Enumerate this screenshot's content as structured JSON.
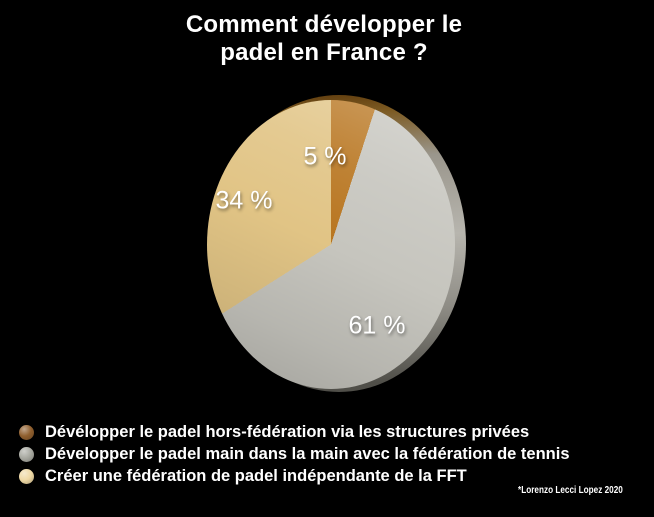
{
  "title": {
    "line1": "Comment développer le",
    "line2": "padel en France ?"
  },
  "chart_data": {
    "type": "pie",
    "style": "3d",
    "title": "Comment développer le padel en France ?",
    "unit": "%",
    "legend_position": "bottom-left",
    "start_angle_deg": 0,
    "direction": "clockwise",
    "slices": [
      {
        "label": "Dévélopper le padel hors-fédération via les structures privées",
        "value": 5,
        "display": "5 %",
        "color": "#b8751f",
        "dot_color": "#8f5f2e"
      },
      {
        "label": "Développer le padel main dans la main avec la fédération de tennis",
        "value": 61,
        "display": "61 %",
        "color": "#c6c5be",
        "dot_color": "#a8a9a1"
      },
      {
        "label": "Créer une fédération de padel indépendante de la FFT",
        "value": 34,
        "display": "34 %",
        "color": "#e1c485",
        "dot_color": "#eed8a4"
      }
    ]
  },
  "credit": "*Lorenzo Lecci Lopez 2020",
  "colors": {
    "background": "#000000",
    "text": "#ffffff",
    "rim_top": "#6f4410",
    "rim_mid": "#a3a19a",
    "rim_bottom": "#504f49"
  }
}
